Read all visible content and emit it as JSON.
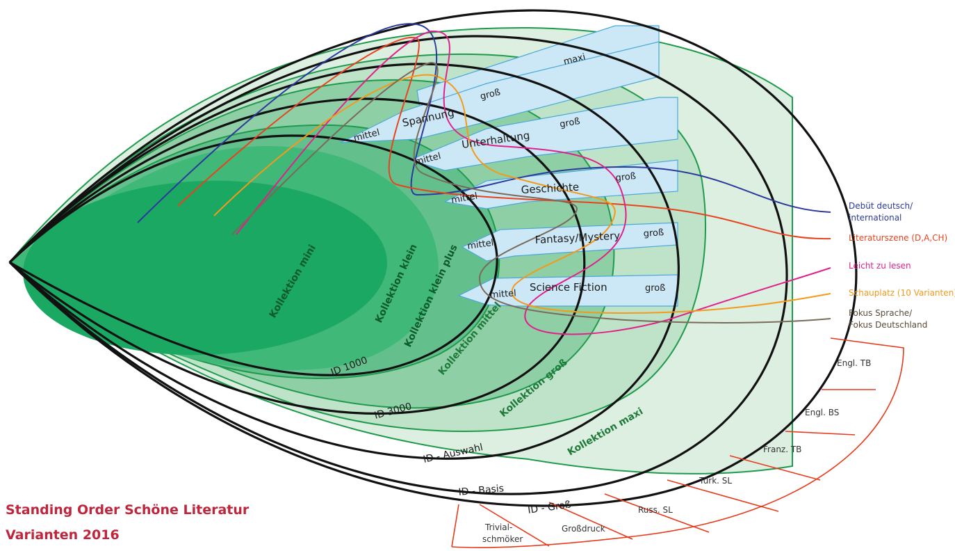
{
  "title": {
    "line1": "Standing Order Schöne Literatur",
    "line2": "Varianten 2016"
  },
  "collections": {
    "mini": "Kollektion mini",
    "klein": "Kollektion klein",
    "klein_plus": "Kollektion klein plus",
    "mittel": "Kollektion mittel",
    "gross": "Kollektion groß",
    "maxi": "Kollektion maxi"
  },
  "id_labels": {
    "id1000": "ID 1000",
    "id3000": "ID 3000",
    "auswahl": "ID - Auswahl",
    "basis": "ID - Basis",
    "gross": "ID - Groß"
  },
  "genres": {
    "spannung": "Spannung",
    "unterhaltung": "Unterhaltung",
    "geschichte": "Geschichte",
    "fantasy": "Fantasy/Mystery",
    "scifi": "Science Fiction"
  },
  "sizes": {
    "mittel": "mittel",
    "gross": "groß",
    "maxi": "maxi"
  },
  "variants": [
    {
      "line1": "Debüt deutsch/",
      "line2": "international",
      "color": "#2b3a9a"
    },
    {
      "line1": "Literaturszene (D,A,CH)",
      "line2": "",
      "color": "#e8431f"
    },
    {
      "line1": "Leicht zu lesen",
      "line2": "",
      "color": "#e0218a"
    },
    {
      "line1": "Schauplatz (10 Varianten)",
      "line2": "",
      "color": "#f29a1c"
    },
    {
      "line1": "Fokus Sprache/",
      "line2": "Fokus Deutschland",
      "color": "#7a6a5a"
    }
  ],
  "extras": {
    "engl_tb": "Engl. TB",
    "engl_bs": "Engl. BS",
    "franz_tb": "Franz. TB",
    "tuerk_sl": "Türk. SL",
    "russ_sl": "Russ. SL",
    "grossdruck": "Großdruck",
    "trivial_1": "Trivial-",
    "trivial_2": "schmöker"
  },
  "colors": {
    "mini": "#1aa862",
    "klein": "#3fb878",
    "klein_plus": "#63c08d",
    "mittel": "#8fcfa6",
    "gross": "#bfe3c8",
    "maxi": "#dcefe0",
    "genre_band": "#cce8f6",
    "title_red": "#c0263b",
    "extras_red": "#e8391b"
  }
}
